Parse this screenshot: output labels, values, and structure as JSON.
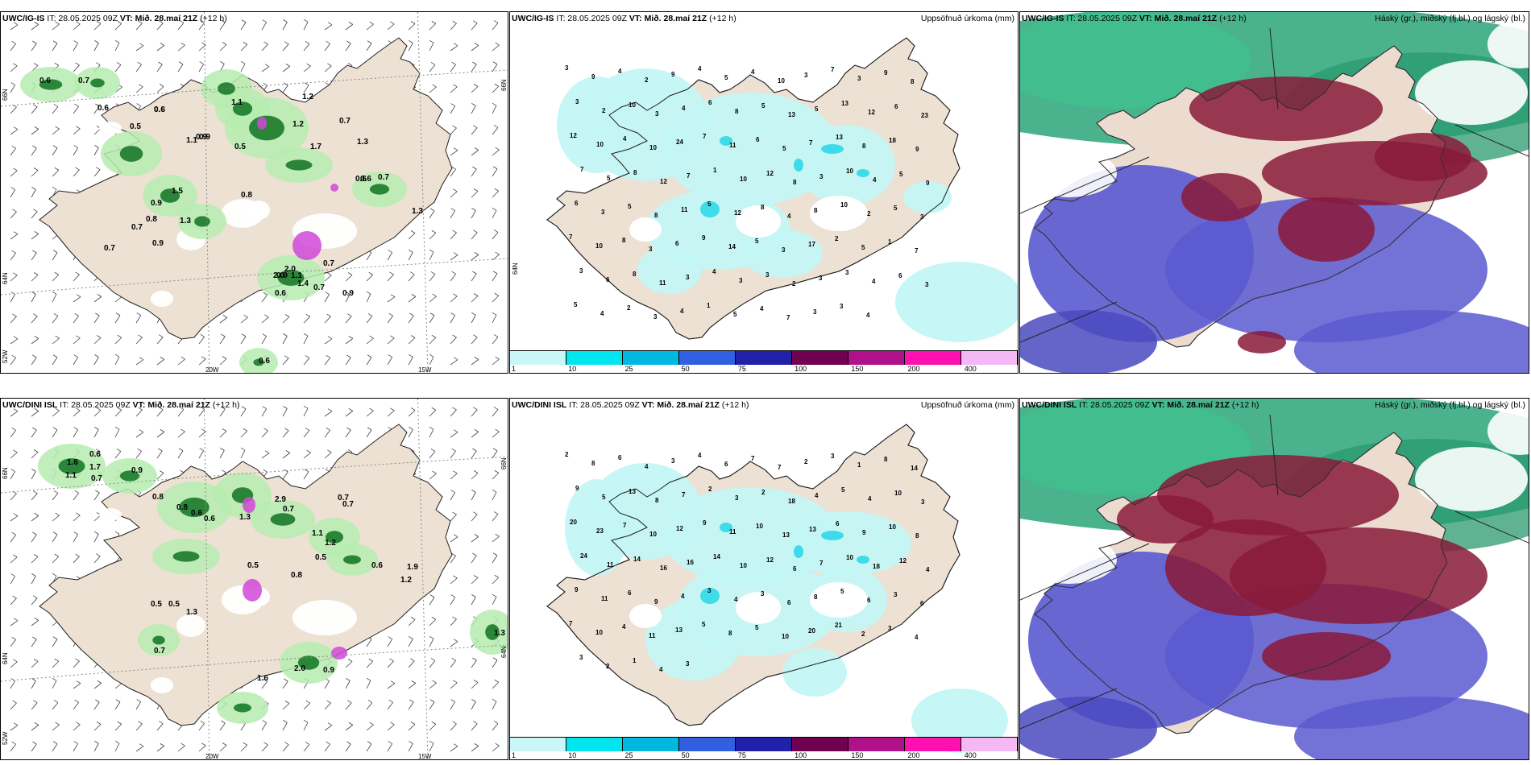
{
  "panels": [
    {
      "id": "p1",
      "model": "UWC/IG-IS",
      "it": "IT: 28.05.2025 09Z",
      "vt": "VT: Mið. 28.maí 21Z",
      "lead": "(+12 h)",
      "right": "",
      "type": "wind",
      "labels": [
        "0.6",
        "0.7",
        "0.6",
        "0.6",
        "0.5",
        "0.6",
        "1.1",
        "0.9",
        "1.1",
        "1.2",
        "0.9",
        "0.5",
        "1.2",
        "0.7",
        "1.3",
        "0.6",
        "0.7",
        "0.8",
        "1.5",
        "0.9",
        "0.8",
        "0.7",
        "1.3",
        "0.9",
        "0.7",
        "1.3",
        "2.0",
        "0.9",
        "1.4",
        "0.7",
        "2.0",
        "1.1",
        "0.7",
        "0.6",
        "0.6",
        "0.9",
        "0.6",
        "1.7"
      ],
      "axis": {
        "lat_top": "66N",
        "lat_bot": "64N",
        "lat_corner": "52W",
        "lon_a": "20W",
        "lon_b": "15W"
      }
    },
    {
      "id": "p2",
      "model": "UWC/IG-IS",
      "it": "IT: 28.05.2025 09Z",
      "vt": "VT: Mið. 28.maí 21Z",
      "lead": "(+12 h)",
      "right": "Uppsöfnuð úrkoma (mm)",
      "type": "precip",
      "labels": [
        "3",
        "9",
        "4",
        "2",
        "9",
        "4",
        "5",
        "4",
        "10",
        "3",
        "7",
        "3",
        "9",
        "8",
        "3",
        "2",
        "10",
        "3",
        "4",
        "6",
        "8",
        "5",
        "13",
        "5",
        "13",
        "12",
        "6",
        "23",
        "12",
        "10",
        "4",
        "10",
        "24",
        "7",
        "11",
        "6",
        "5",
        "7",
        "13",
        "8",
        "18",
        "9",
        "7",
        "5",
        "8",
        "12",
        "7",
        "1",
        "10",
        "12",
        "8",
        "3",
        "10",
        "4",
        "5",
        "9",
        "6",
        "3",
        "5",
        "8",
        "11",
        "5",
        "12",
        "8",
        "4",
        "8",
        "10",
        "2",
        "5",
        "3",
        "7",
        "10",
        "8",
        "3",
        "6",
        "9",
        "14",
        "5",
        "3",
        "17",
        "2",
        "5",
        "1",
        "7",
        "3",
        "6",
        "8",
        "11",
        "3",
        "4",
        "3",
        "3",
        "2",
        "3",
        "3",
        "4",
        "6",
        "3",
        "5",
        "4",
        "2",
        "3",
        "4",
        "1",
        "5",
        "4",
        "7",
        "3",
        "3",
        "4"
      ],
      "legend": [
        "1",
        "10",
        "25",
        "50",
        "75",
        "100",
        "150",
        "200",
        "400"
      ]
    },
    {
      "id": "p3",
      "model": "UWC/IG-IS",
      "it": "IT: 28.05.2025 09Z",
      "vt": "VT: Mið. 28.maí 21Z",
      "lead": "(+12 h)",
      "right": "Háský (gr.), miðský (fj.bl.) og lágský (bl.)",
      "type": "cloud"
    },
    {
      "id": "p4",
      "model": "UWC/DINI ISL",
      "it": "IT: 28.05.2025 09Z",
      "vt": "VT: Mið. 28.maí 21Z",
      "lead": "(+12 h)",
      "right": "",
      "type": "wind",
      "labels": [
        "1.6",
        "0.6",
        "1.7",
        "0.9",
        "1.1",
        "0.7",
        "0.8",
        "0.8",
        "0.6",
        "0.6",
        "2.9",
        "0.7",
        "0.7",
        "0.7",
        "0.5",
        "1.3",
        "1.1",
        "1.2",
        "0.5",
        "0.6",
        "1.9",
        "0.5",
        "1.3",
        "0.5",
        "0.8",
        "1.2",
        "0.7",
        "2.0",
        "0.9",
        "1.6",
        "1.3"
      ],
      "axis": {
        "lat_top": "66N",
        "lat_bot": "64N",
        "lat_corner": "52W",
        "lon_a": "20W",
        "lon_b": "15W"
      }
    },
    {
      "id": "p5",
      "model": "UWC/DINI ISL",
      "it": "IT: 28.05.2025 09Z",
      "vt": "VT: Mið. 28.maí 21Z",
      "lead": "(+12 h)",
      "right": "Uppsöfnuð úrkoma (mm)",
      "type": "precip",
      "labels": [
        "2",
        "8",
        "6",
        "4",
        "3",
        "4",
        "6",
        "7",
        "7",
        "2",
        "3",
        "1",
        "8",
        "14",
        "9",
        "5",
        "13",
        "8",
        "7",
        "2",
        "3",
        "2",
        "18",
        "4",
        "5",
        "4",
        "10",
        "3",
        "20",
        "23",
        "7",
        "10",
        "12",
        "9",
        "11",
        "10",
        "13",
        "13",
        "6",
        "9",
        "10",
        "8",
        "24",
        "11",
        "14",
        "16",
        "16",
        "14",
        "10",
        "12",
        "6",
        "7",
        "10",
        "18",
        "12",
        "4",
        "9",
        "11",
        "6",
        "9",
        "4",
        "3",
        "4",
        "3",
        "6",
        "8",
        "5",
        "6",
        "3",
        "6",
        "7",
        "10",
        "4",
        "11",
        "13",
        "5",
        "8",
        "5",
        "10",
        "20",
        "21",
        "2",
        "3",
        "4",
        "3",
        "2",
        "1",
        "4",
        "3"
      ],
      "legend": [
        "1",
        "10",
        "25",
        "50",
        "75",
        "100",
        "150",
        "200",
        "400"
      ]
    },
    {
      "id": "p6",
      "model": "UWC/DINI ISL",
      "it": "IT: 28.05.2025 09Z",
      "vt": "VT: Mið. 28.maí 21Z",
      "lead": "(+12 h)",
      "right": "Háský (gr.), miðský (fj.bl.) og lágský (bl.)",
      "type": "cloud"
    }
  ],
  "legend_colors": [
    "#c9f7f7",
    "#00e5ee",
    "#00b8e0",
    "#3060e0",
    "#2020a8",
    "#700050",
    "#b0108a",
    "#ff10b0",
    "#f4b8f4"
  ],
  "colors": {
    "land": "#ede1d3",
    "precip_light": "#c4f6f6",
    "green_light": "#b6ecb0",
    "green_dark": "#1a7a2a",
    "cloud_green": "#2aa67a",
    "cloud_red": "#8a1a3a",
    "cloud_blue": "#5a5ad0"
  }
}
